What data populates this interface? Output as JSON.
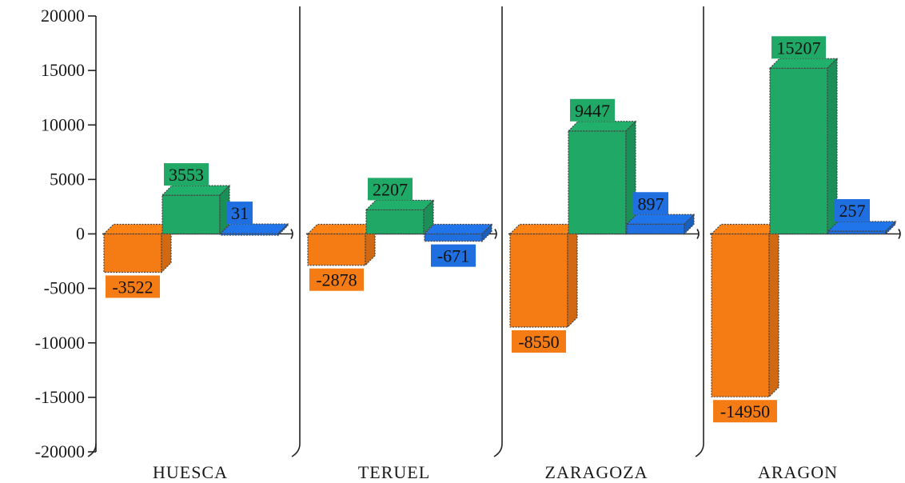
{
  "chart_data": {
    "type": "bar",
    "title": "",
    "xlabel": "",
    "ylabel": "",
    "categories": [
      "HUESCA",
      "TERUEL",
      "ZARAGOZA",
      "ARAGON"
    ],
    "ylim": [
      -20000,
      20000
    ],
    "yticks": [
      "20000",
      "15000",
      "10000",
      "5000",
      "0",
      "-5000",
      "-10000",
      "-15000",
      "-20000"
    ],
    "grid": false,
    "legend": "none",
    "series": [
      {
        "color": "#f57c14",
        "values": [
          -3522,
          -2878,
          -8550,
          -14950
        ],
        "labels": [
          "-3522",
          "-2878",
          "-8550",
          "-14950"
        ]
      },
      {
        "color": "#1fa866",
        "values": [
          3553,
          2207,
          9447,
          15207
        ],
        "labels": [
          "3553",
          "2207",
          "9447",
          "15207"
        ]
      },
      {
        "color": "#1f6fe0",
        "values": [
          31,
          -671,
          897,
          257
        ],
        "labels": [
          "31",
          "-671",
          "897",
          "257"
        ]
      }
    ]
  }
}
